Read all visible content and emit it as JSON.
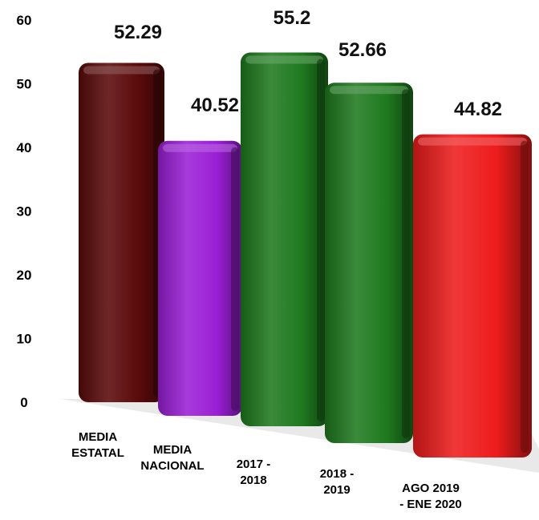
{
  "chart_data": {
    "type": "bar",
    "categories": [
      [
        "MEDIA",
        "ESTATAL"
      ],
      [
        "MEDIA",
        "NACIONAL"
      ],
      [
        "2017 -",
        "2018"
      ],
      [
        "2018 -",
        "2019"
      ],
      [
        "AGO 2019",
        "- ENE 2020"
      ]
    ],
    "values": [
      52.29,
      40.52,
      55.2,
      52.66,
      44.82
    ],
    "value_labels": [
      "52.29",
      "40.52",
      "55.2",
      "52.66",
      "44.82"
    ],
    "colors": [
      "#5a0a0a",
      "#9b1fd6",
      "#1f7a1f",
      "#1f7a1f",
      "#ee1c1c"
    ],
    "ylim": [
      0,
      60
    ],
    "yticks": [
      0,
      10,
      20,
      30,
      40,
      50,
      60
    ],
    "grid": false,
    "legend": "none",
    "title": "",
    "xlabel": "",
    "ylabel": ""
  }
}
